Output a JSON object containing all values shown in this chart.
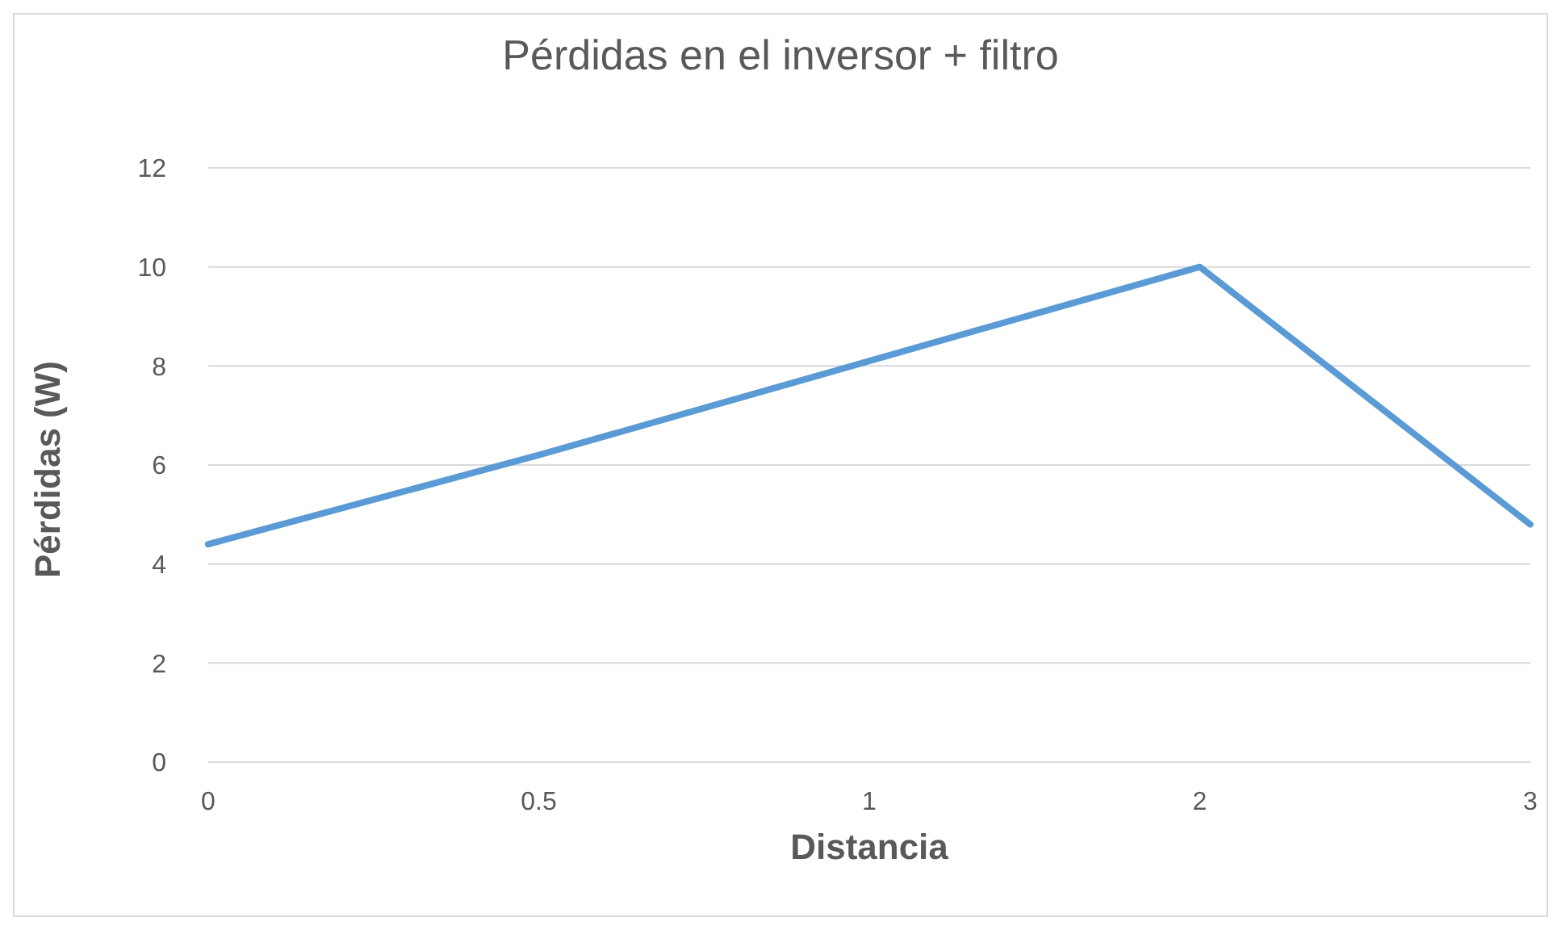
{
  "chart_data": {
    "type": "line",
    "title": "Pérdidas en el inversor + filtro",
    "xlabel": "Distancia",
    "ylabel": "Pérdidas (W)",
    "categories": [
      "0",
      "0.5",
      "1",
      "2",
      "3"
    ],
    "series": [
      {
        "color": "#5b9bd5",
        "values": [
          4.4,
          6.2,
          8.1,
          10,
          4.8
        ]
      }
    ],
    "ylim": [
      0,
      12
    ],
    "yticks": [
      0,
      2,
      4,
      6,
      8,
      10,
      12
    ],
    "grid": "y",
    "legend": false,
    "marker": "none",
    "line_style": "solid"
  }
}
